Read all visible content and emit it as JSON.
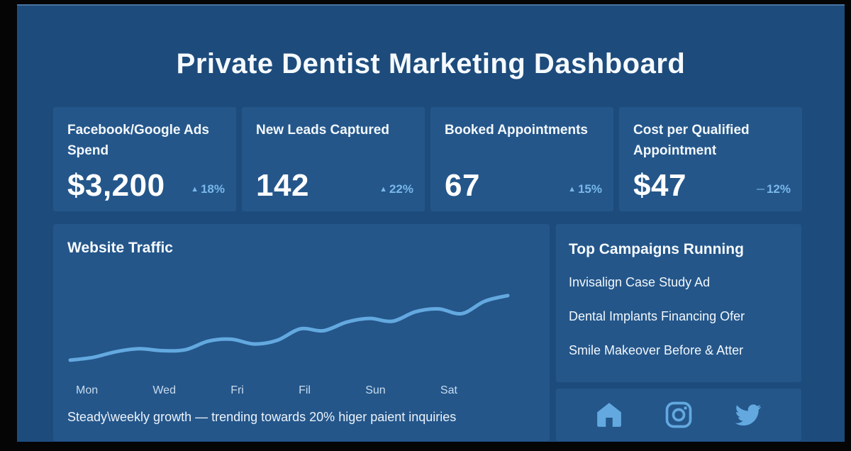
{
  "page": {
    "title": "Private Dentist Marketing Dashboard"
  },
  "stats": [
    {
      "label": "Facebook/Google Ads Spend",
      "value": "$3,200",
      "arrow": "▲",
      "delta": "18%"
    },
    {
      "label": "New Leads Captured",
      "value": "142",
      "arrow": "▲",
      "delta": "22%"
    },
    {
      "label": "Booked Appointments",
      "value": "67",
      "arrow": "▲",
      "delta": "15%"
    },
    {
      "label": "Cost per Qualified Appointment",
      "value": "$47",
      "arrow": "—",
      "delta": "12%"
    }
  ],
  "traffic": {
    "title": "Website Traffic",
    "caption": "Steady\\weekly growth — trending towards 20% higer paient inquiries"
  },
  "chart_data": {
    "type": "line",
    "title": "Website Traffic",
    "x_labels": [
      "Mon",
      "Wed",
      "Fri",
      "Fil",
      "Sun",
      "Sat"
    ],
    "series": [
      {
        "name": "Website Traffic",
        "values": [
          12,
          15,
          21,
          24,
          22,
          23,
          32,
          34,
          29,
          33,
          45,
          43,
          52,
          56,
          53,
          63,
          66,
          61,
          74,
          80
        ]
      }
    ],
    "ylim": [
      0,
      100
    ],
    "grid": false,
    "legend": false,
    "line_color": "#63a9e0",
    "annotation": "Steady\\weekly growth — trending towards 20% higer paient inquiries"
  },
  "campaigns": {
    "title": "Top Campaigns Running",
    "items": [
      "Invisalign Case Study Ad",
      "Dental Implants Financing Ofer",
      "Smile Makeover Before & Atter"
    ]
  },
  "social": {
    "icons": [
      "home",
      "instagram",
      "twitter"
    ]
  },
  "colors": {
    "frame": "#050505",
    "panel": "#1d4b7c",
    "card": "#24568a",
    "accent": "#63a9e0",
    "delta": "#79b7e8",
    "text": "#f6fafd"
  }
}
